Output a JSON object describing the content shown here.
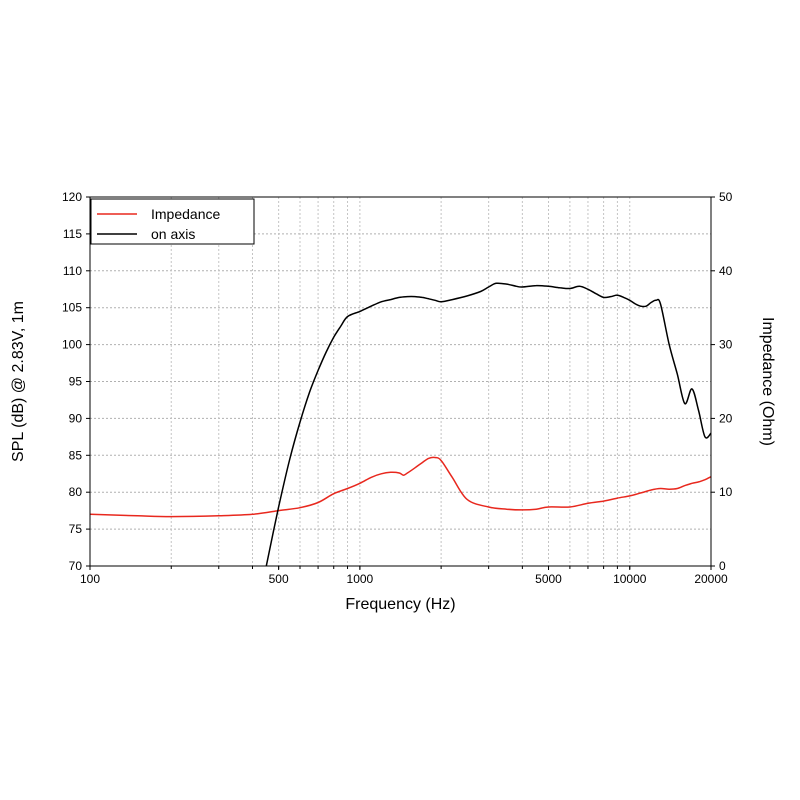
{
  "chart_data": {
    "type": "line",
    "xlabel": "Frequency (Hz)",
    "ylabel": "SPL (dB) @ 2.83V, 1m",
    "y2label": "Impedance (Ohm)",
    "xscale": "log",
    "xlim": [
      100,
      20000
    ],
    "ylim": [
      70,
      120
    ],
    "y2lim": [
      0,
      50
    ],
    "grid": true,
    "legend_position": "top-left",
    "x_ticks": [
      100,
      500,
      1000,
      5000,
      10000,
      20000
    ],
    "x_tick_labels": [
      "100",
      "500",
      "1000",
      "5000",
      "10000",
      "20000"
    ],
    "y_ticks": [
      70,
      75,
      80,
      85,
      90,
      95,
      100,
      105,
      110,
      115,
      120
    ],
    "y_tick_labels": [
      "70",
      "75",
      "80",
      "85",
      "90",
      "95",
      "100",
      "105",
      "110",
      "115",
      "120"
    ],
    "y2_ticks": [
      0,
      10,
      20,
      30,
      40,
      50
    ],
    "y2_tick_labels": [
      "0",
      "10",
      "20",
      "30",
      "40",
      "50"
    ],
    "series": [
      {
        "name": "Impedance",
        "axis": "right",
        "color": "#e8281e",
        "x": [
          100,
          150,
          200,
          300,
          400,
          500,
          600,
          700,
          800,
          900,
          1000,
          1100,
          1200,
          1300,
          1400,
          1450,
          1500,
          1600,
          1700,
          1800,
          1900,
          2000,
          2200,
          2500,
          3000,
          3500,
          4000,
          4500,
          5000,
          6000,
          7000,
          8000,
          9000,
          10000,
          11000,
          12000,
          13000,
          14000,
          15000,
          16000,
          17000,
          18000,
          19000,
          20000
        ],
        "y": [
          7.0,
          6.8,
          6.7,
          6.8,
          7.0,
          7.5,
          7.9,
          8.6,
          9.8,
          10.5,
          11.2,
          12.0,
          12.5,
          12.7,
          12.6,
          12.3,
          12.6,
          13.3,
          14.0,
          14.6,
          14.7,
          14.3,
          12.0,
          9.0,
          8.0,
          7.7,
          7.6,
          7.7,
          8.0,
          8.0,
          8.5,
          8.8,
          9.2,
          9.5,
          9.9,
          10.3,
          10.5,
          10.4,
          10.5,
          10.9,
          11.2,
          11.4,
          11.7,
          12.1
        ]
      },
      {
        "name": "on axis",
        "axis": "left",
        "color": "#000000",
        "x": [
          450,
          500,
          550,
          600,
          650,
          700,
          750,
          800,
          850,
          900,
          1000,
          1100,
          1200,
          1300,
          1400,
          1500,
          1600,
          1700,
          1800,
          1900,
          2000,
          2200,
          2500,
          2800,
          3000,
          3200,
          3500,
          3800,
          4000,
          4500,
          5000,
          5500,
          6000,
          6500,
          7000,
          7500,
          8000,
          8500,
          9000,
          9500,
          10000,
          10500,
          11000,
          11500,
          12000,
          12500,
          13000,
          14000,
          15000,
          16000,
          17000,
          18000,
          19000,
          20000
        ],
        "y": [
          70,
          78.0,
          84.5,
          89.5,
          93.5,
          96.5,
          99.0,
          101.0,
          102.5,
          103.8,
          104.5,
          105.2,
          105.8,
          106.1,
          106.4,
          106.5,
          106.5,
          106.4,
          106.2,
          106.0,
          105.8,
          106.1,
          106.6,
          107.2,
          107.8,
          108.3,
          108.2,
          107.9,
          107.8,
          108.0,
          107.9,
          107.7,
          107.6,
          107.9,
          107.5,
          106.9,
          106.4,
          106.5,
          106.7,
          106.4,
          106.0,
          105.5,
          105.2,
          105.2,
          105.7,
          106.0,
          105.5,
          100.0,
          96.0,
          92.0,
          94.0,
          91.0,
          87.5,
          88.0
        ]
      }
    ]
  }
}
